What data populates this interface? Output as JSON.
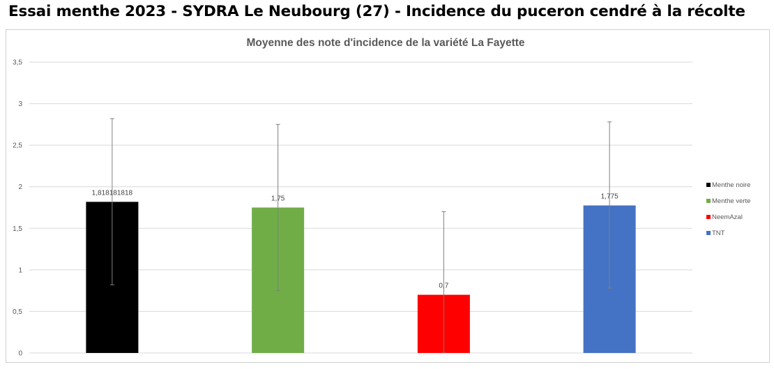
{
  "headline": "Essai menthe 2023 - SYDRA Le Neubourg (27) - Incidence du puceron cendré à la récolte",
  "chart_data": {
    "type": "bar",
    "title": "Moyenne des note d'incidence de la variété La Fayette",
    "xlabel": "",
    "ylabel": "",
    "ylim": [
      0,
      3.5
    ],
    "yticks": [
      "0",
      "0,5",
      "1",
      "1,5",
      "2",
      "2,5",
      "3",
      "3,5"
    ],
    "ytick_values": [
      0,
      0.5,
      1,
      1.5,
      2,
      2.5,
      3,
      3.5
    ],
    "grid": true,
    "legend": "right",
    "series": [
      {
        "name": "Menthe noire",
        "value": 1.818181818,
        "label": "1,818181818",
        "error_low": 0.82,
        "error_high": 2.82,
        "color": "#000000"
      },
      {
        "name": "Menthe verte",
        "value": 1.75,
        "label": "1,75",
        "error_low": 0.75,
        "error_high": 2.75,
        "color": "#70ad47"
      },
      {
        "name": "NeemAzal",
        "value": 0.7,
        "label": "0,7",
        "error_low": 0,
        "error_high": 1.7,
        "color": "#ff0000"
      },
      {
        "name": "TNT",
        "value": 1.775,
        "label": "1,775",
        "error_low": 0.78,
        "error_high": 2.78,
        "color": "#4472c4"
      }
    ]
  }
}
